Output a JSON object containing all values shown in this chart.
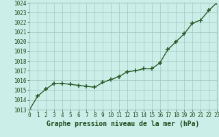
{
  "x": [
    0,
    1,
    2,
    3,
    4,
    5,
    6,
    7,
    8,
    9,
    10,
    11,
    12,
    13,
    14,
    15,
    16,
    17,
    18,
    19,
    20,
    21,
    22,
    23
  ],
  "y": [
    1013.0,
    1014.4,
    1015.1,
    1015.7,
    1015.7,
    1015.6,
    1015.5,
    1015.4,
    1015.3,
    1015.8,
    1016.1,
    1016.4,
    1016.9,
    1017.0,
    1017.2,
    1017.2,
    1017.8,
    1019.2,
    1020.0,
    1020.8,
    1021.9,
    1022.2,
    1023.2,
    1024.0
  ],
  "line_color": "#2a5c2a",
  "marker": "+",
  "marker_size": 4,
  "marker_linewidth": 1.2,
  "line_width": 1.0,
  "bg_color": "#cceee8",
  "grid_color": "#a0c8c0",
  "xlabel": "Graphe pression niveau de la mer (hPa)",
  "xlabel_color": "#1a4a1a",
  "xlabel_fontsize": 7,
  "tick_color": "#1a4a1a",
  "tick_fontsize": 5.5,
  "ylim": [
    1013,
    1024
  ],
  "xlim": [
    0,
    23
  ],
  "yticks": [
    1013,
    1014,
    1015,
    1016,
    1017,
    1018,
    1019,
    1020,
    1021,
    1022,
    1023,
    1024
  ],
  "xtick_labels": [
    "0",
    "1",
    "2",
    "3",
    "4",
    "5",
    "6",
    "7",
    "8",
    "9",
    "10",
    "11",
    "12",
    "13",
    "14",
    "15",
    "16",
    "17",
    "18",
    "19",
    "20",
    "21",
    "22",
    "23"
  ]
}
